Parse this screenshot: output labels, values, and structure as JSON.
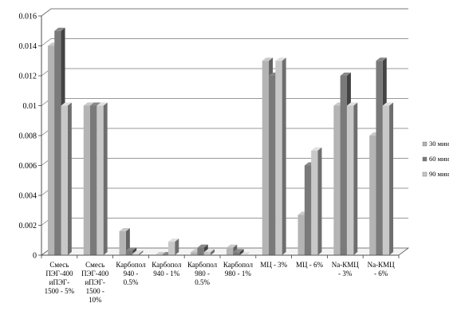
{
  "chart_data": {
    "type": "bar",
    "title": "",
    "xlabel": "",
    "ylabel": "",
    "ylim": [
      0,
      0.016
    ],
    "yticks": [
      "0",
      "0.002",
      "0.004",
      "0.006",
      "0.008",
      "0.01",
      "0.012",
      "0.014",
      "0.016"
    ],
    "grid": true,
    "legend_position": "right",
    "categories": [
      "Смесь ПЭГ-400 иПЭГ-1500 - 5%",
      "Смесь ПЭГ-400 иПЭГ-1500 - 10%",
      "Карбопол 940 - 0.5%",
      "Карбопол 940 - 1%",
      "Карбопол 980 - 0.5%",
      "Карбопол 980 - 1%",
      "МЦ - 3%",
      "МЦ - 6%",
      "Na-КМЦ - 3%",
      "Na-КМЦ - 6%"
    ],
    "category_lines": [
      [
        "Смесь",
        "ПЭГ-400",
        "иПЭГ-",
        "1500 - 5%"
      ],
      [
        "Смесь",
        "ПЭГ-400",
        "иПЭГ-",
        "1500 -",
        "10%"
      ],
      [
        "Карбопол",
        "940 -",
        "0.5%"
      ],
      [
        "Карбопол",
        "940 - 1%"
      ],
      [
        "Карбопол",
        "980 -",
        "0.5%"
      ],
      [
        "Карбопол",
        "980 - 1%"
      ],
      [
        "МЦ - 3%"
      ],
      [
        "МЦ - 6%"
      ],
      [
        "Na-КМЦ",
        "- 3%"
      ],
      [
        "Na-КМЦ",
        "- 6%"
      ]
    ],
    "series": [
      {
        "name": "30 мин",
        "color": "#b4b4b4",
        "values": [
          0.014,
          0.01,
          0.0016,
          0.0,
          0.0002,
          0.0005,
          0.013,
          0.0027,
          0.01,
          0.008
        ]
      },
      {
        "name": "60 мин",
        "color": "#7a7a7a",
        "values": [
          0.015,
          0.01,
          0.0003,
          0.0,
          0.0005,
          0.0002,
          0.012,
          0.006,
          0.012,
          0.013
        ]
      },
      {
        "name": "90 мин",
        "color": "#c8c8c8",
        "values": [
          0.01,
          0.01,
          0.0001,
          0.0009,
          0.0002,
          0.0,
          0.013,
          0.007,
          0.01,
          0.01
        ]
      }
    ]
  }
}
